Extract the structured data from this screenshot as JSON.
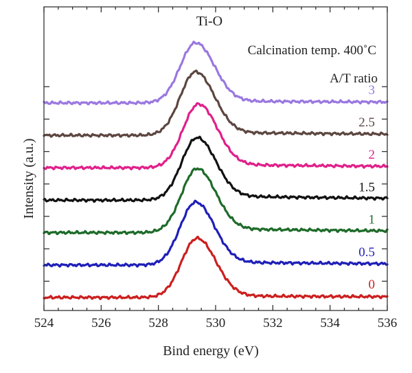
{
  "chart_data": {
    "type": "line",
    "title": "Ti-O",
    "annotation": "Calcination temp. 400˚C",
    "legend_title": "A/T ratio",
    "xlabel": "Bind energy (eV)",
    "ylabel": "Intensity (a.u.)",
    "xlim": [
      524,
      536
    ],
    "x_ticks": [
      "524",
      "526",
      "528",
      "530",
      "532",
      "534",
      "536"
    ],
    "y_units": "a.u. (stacked, offset)",
    "grid": false,
    "series": [
      {
        "name": "0",
        "color": "#cc1f1f",
        "baseline": 0.0,
        "peak_x": 529.35,
        "peak_height": 1.82,
        "tail": 0.05
      },
      {
        "name": "0.5",
        "color": "#1f1fb8",
        "baseline": 1.0,
        "peak_x": 529.3,
        "peak_height": 1.93,
        "tail": 0.09
      },
      {
        "name": "1",
        "color": "#1e6b2a",
        "baseline": 2.0,
        "peak_x": 529.35,
        "peak_height": 1.96,
        "tail": 0.12
      },
      {
        "name": "1.5",
        "color": "#111111",
        "baseline": 3.0,
        "peak_x": 529.35,
        "peak_height": 1.91,
        "tail": 0.13
      },
      {
        "name": "2",
        "color": "#e0208a",
        "baseline": 4.0,
        "peak_x": 529.4,
        "peak_height": 1.95,
        "tail": 0.1
      },
      {
        "name": "2.5",
        "color": "#5c4640",
        "baseline": 5.0,
        "peak_x": 529.3,
        "peak_height": 1.95,
        "tail": 0.09
      },
      {
        "name": "3",
        "color": "#9a78e0",
        "baseline": 6.0,
        "peak_x": 529.3,
        "peak_height": 1.85,
        "tail": 0.06
      }
    ]
  }
}
